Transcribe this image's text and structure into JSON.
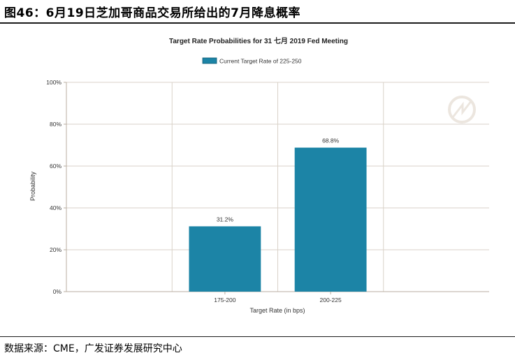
{
  "figure_title": "图46：6月19日芝加哥商品交易所给出的7月降息概率",
  "source_text": "数据来源：CME，广发证券发展研究中心",
  "chart_data": {
    "type": "bar",
    "title": "Target Rate Probabilities for 31 七月 2019  Fed Meeting",
    "legend": {
      "label": "Current Target Rate of 225-250",
      "placement": "top-center"
    },
    "xlabel": "Target Rate (in bps)",
    "ylabel": "Probability",
    "categories": [
      "175-200",
      "200-225"
    ],
    "values": [
      31.2,
      68.8
    ],
    "value_labels": [
      "31.2%",
      "68.8%"
    ],
    "ylim": [
      0,
      100
    ],
    "yticks": [
      0,
      20,
      40,
      60,
      80,
      100
    ],
    "ytick_labels": [
      "0%",
      "20%",
      "40%",
      "60%",
      "80%",
      "100%"
    ],
    "grid": true,
    "bar_color": "#1c84a6"
  }
}
